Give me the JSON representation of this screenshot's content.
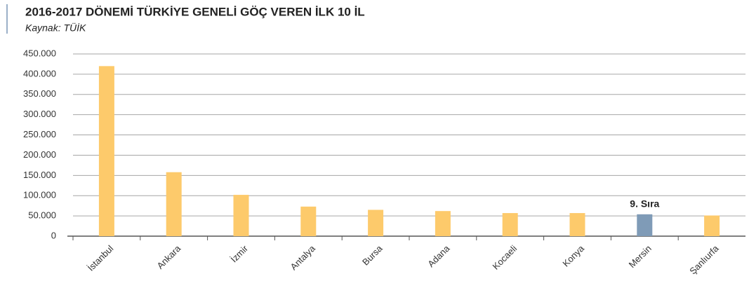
{
  "chart_data": {
    "type": "bar",
    "title": "2016-2017 DÖNEMİ TÜRKİYE GENELİ GÖÇ VEREN İLK 10 İL",
    "subtitle": "Kaynak: TÜİK",
    "categories": [
      "İstanbul",
      "Ankara",
      "İzmir",
      "Antalya",
      "Bursa",
      "Adana",
      "Kocaeli",
      "Konya",
      "Mersin",
      "Şanlıurfa"
    ],
    "values": [
      420000,
      158000,
      102000,
      73000,
      65000,
      62000,
      57000,
      57000,
      54000,
      51000
    ],
    "colors": [
      "#fdca6b",
      "#fdca6b",
      "#fdca6b",
      "#fdca6b",
      "#fdca6b",
      "#fdca6b",
      "#fdca6b",
      "#fdca6b",
      "#7f9bb7",
      "#fdca6b"
    ],
    "annotations": [
      {
        "text": "9. Sıra",
        "category": "Mersin"
      }
    ],
    "ylim": [
      0,
      450000
    ],
    "yticks": [
      0,
      {
        "value": 50000,
        "label": "50.000"
      },
      {
        "value": 100000,
        "label": "100.000"
      },
      {
        "value": 150000,
        "label": "150.000"
      },
      {
        "value": 200000,
        "label": "200.000"
      },
      {
        "value": 250000,
        "label": "250.000"
      },
      {
        "value": 300000,
        "label": "300.000"
      },
      {
        "value": 350000,
        "label": "350.000"
      },
      {
        "value": 400000,
        "label": "400.000"
      },
      {
        "value": 450000,
        "label": "450.000"
      }
    ],
    "grid": true
  }
}
